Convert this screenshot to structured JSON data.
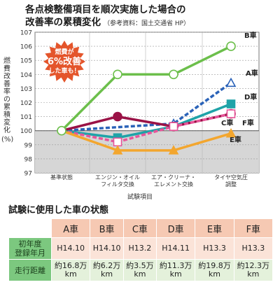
{
  "header": {
    "title_line1": "各点検整備項目を順次実施した場合の",
    "title_line2": "改善率の累積変化",
    "source": "（参考資料：国土交通省 HP）"
  },
  "chart_data": {
    "type": "line",
    "ylabel": "燃費改善率の累積変化",
    "ylabel_unit": "(%)",
    "xlabel": "試験項目",
    "ylim": [
      97,
      107
    ],
    "yticks": [
      97,
      98,
      99,
      100,
      101,
      102,
      103,
      104,
      105,
      106,
      107
    ],
    "categories": [
      "基準状態",
      "エンジン・オイル\nフィルタ交換",
      "エア・クリーナ・\nエレメント交換",
      "タイヤ空気圧\n調整"
    ],
    "grid": true,
    "shaded_below": 100,
    "series": [
      {
        "name": "B車",
        "color": "#6cbf4b",
        "style": "solid",
        "marker": "circle-open",
        "values": [
          100,
          104,
          104,
          106
        ]
      },
      {
        "name": "A車",
        "color": "#2a62b8",
        "style": "dashed",
        "marker": "triangle-open",
        "values": [
          100,
          null,
          100.5,
          103.4
        ]
      },
      {
        "name": "D車",
        "color": "#1fa3a8",
        "style": "solid",
        "marker": "square",
        "values": [
          100,
          99.5,
          100.3,
          101.9
        ]
      },
      {
        "name": "C車",
        "color": "#9a1246",
        "style": "solid",
        "marker": "circle",
        "values": [
          100,
          101,
          100.3,
          101.2
        ]
      },
      {
        "name": "F車",
        "color": "#e8559a",
        "style": "dashed",
        "marker": "square-open",
        "values": [
          100,
          99.2,
          100.3,
          101.2
        ]
      },
      {
        "name": "E車",
        "color": "#f3a62e",
        "style": "solid",
        "marker": "triangle",
        "values": [
          100,
          98.6,
          98.6,
          99.8
        ]
      }
    ],
    "callout": "燃費が\n6%改善\nした車も！",
    "callout_color": "#e4552b"
  },
  "table": {
    "title": "試験に使用した車の状態",
    "headers": [
      "A車",
      "B車",
      "C車",
      "D車",
      "E車",
      "F車"
    ],
    "rows": [
      {
        "label": "初年度\n登録年月",
        "cells": [
          "H14.10",
          "H14.10",
          "H13.2",
          "H14.11",
          "H13.3",
          "H13.3"
        ]
      },
      {
        "label": "走行距離",
        "cells": [
          "約16.8万\nkm",
          "約6.2万\nkm",
          "約3.5万\nkm",
          "約11.3万\nkm",
          "約19.8万\nkm",
          "約12.3万\nkm"
        ]
      }
    ]
  }
}
